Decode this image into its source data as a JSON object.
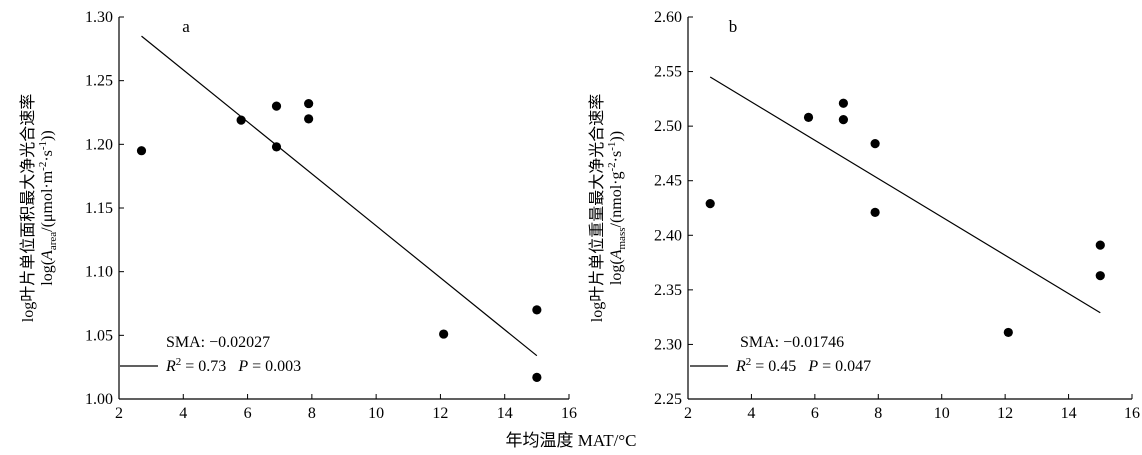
{
  "figure": {
    "xlabel": "年均温度 MAT/°C"
  },
  "chart_data": [
    {
      "type": "scatter",
      "panel_label": "a",
      "ylabel_line1": "log叶片单位面积最大净光合速率",
      "ylabel_line2_prefix": "log(",
      "ylabel_line2_var": "A",
      "ylabel_line2_sub": "area",
      "ylabel_line2_unit": "/(μmol·m",
      "ylabel_line2_exp1": "-2",
      "ylabel_line2_mid": "·s",
      "ylabel_line2_exp2": "-1",
      "ylabel_line2_end": "))",
      "xlim": [
        2,
        16
      ],
      "ylim": [
        1.0,
        1.3
      ],
      "xticks": [
        "2",
        "4",
        "6",
        "8",
        "10",
        "12",
        "14",
        "16"
      ],
      "yticks": [
        "1.00",
        "1.05",
        "1.10",
        "1.15",
        "1.20",
        "1.25",
        "1.30"
      ],
      "points": [
        {
          "x": 2.7,
          "y": 1.195
        },
        {
          "x": 5.8,
          "y": 1.219
        },
        {
          "x": 6.9,
          "y": 1.23
        },
        {
          "x": 6.9,
          "y": 1.198
        },
        {
          "x": 7.9,
          "y": 1.232
        },
        {
          "x": 7.9,
          "y": 1.22
        },
        {
          "x": 12.1,
          "y": 1.051
        },
        {
          "x": 15.0,
          "y": 1.07
        },
        {
          "x": 15.0,
          "y": 1.017
        }
      ],
      "fit_line": {
        "x": [
          2.7,
          15.0
        ],
        "y": [
          1.285,
          1.034
        ]
      },
      "annotation": {
        "sma": "SMA: −0.02027",
        "r2_label": "R",
        "r2_sup": "2",
        "r2_value": " = 0.73",
        "p_label": "P",
        "p_value": " = 0.003"
      }
    },
    {
      "type": "scatter",
      "panel_label": "b",
      "ylabel_line1": "log叶片单位重量最大净光合速率",
      "ylabel_line2_prefix": "log(",
      "ylabel_line2_var": "A",
      "ylabel_line2_sub": "mass",
      "ylabel_line2_unit": "/(nmol·g",
      "ylabel_line2_exp1": "-2",
      "ylabel_line2_mid": "·s",
      "ylabel_line2_exp2": "-1",
      "ylabel_line2_end": "))",
      "xlim": [
        2,
        16
      ],
      "ylim": [
        2.25,
        2.6
      ],
      "xticks": [
        "2",
        "4",
        "6",
        "8",
        "10",
        "12",
        "14",
        "16"
      ],
      "yticks": [
        "2.25",
        "2.30",
        "2.35",
        "2.40",
        "2.45",
        "2.50",
        "2.55",
        "2.60"
      ],
      "points": [
        {
          "x": 2.7,
          "y": 2.429
        },
        {
          "x": 5.8,
          "y": 2.508
        },
        {
          "x": 6.9,
          "y": 2.521
        },
        {
          "x": 6.9,
          "y": 2.506
        },
        {
          "x": 7.9,
          "y": 2.484
        },
        {
          "x": 7.9,
          "y": 2.421
        },
        {
          "x": 12.1,
          "y": 2.311
        },
        {
          "x": 15.0,
          "y": 2.391
        },
        {
          "x": 15.0,
          "y": 2.363
        }
      ],
      "fit_line": {
        "x": [
          2.7,
          15.0
        ],
        "y": [
          2.545,
          2.329
        ]
      },
      "annotation": {
        "sma": "SMA: −0.01746",
        "r2_label": "R",
        "r2_sup": "2",
        "r2_value": " = 0.45",
        "p_label": "P",
        "p_value": " = 0.047"
      }
    }
  ]
}
